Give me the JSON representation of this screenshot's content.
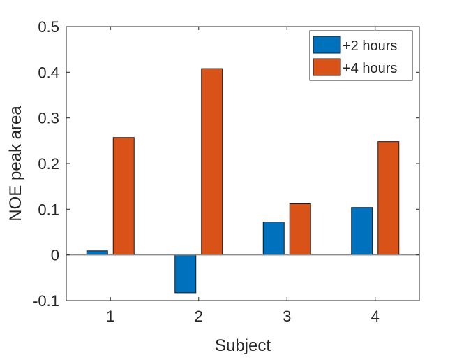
{
  "chart_data": {
    "type": "bar",
    "title": "",
    "xlabel": "Subject",
    "ylabel": "NOE peak area",
    "categories": [
      "1",
      "2",
      "3",
      "4"
    ],
    "series": [
      {
        "name": "+2 hours",
        "color": "#0072BD",
        "values": [
          0.009,
          -0.083,
          0.072,
          0.104
        ]
      },
      {
        "name": "+4 hours",
        "color": "#D95319",
        "values": [
          0.257,
          0.408,
          0.112,
          0.248
        ]
      }
    ],
    "ylim": [
      -0.1,
      0.5
    ],
    "yticks": [
      -0.1,
      0,
      0.1,
      0.2,
      0.3,
      0.4,
      0.5
    ],
    "ytick_labels": [
      "-0.1",
      "0",
      "0.1",
      "0.2",
      "0.3",
      "0.4",
      "0.5"
    ],
    "grid": false,
    "legend_position": "top-right"
  }
}
